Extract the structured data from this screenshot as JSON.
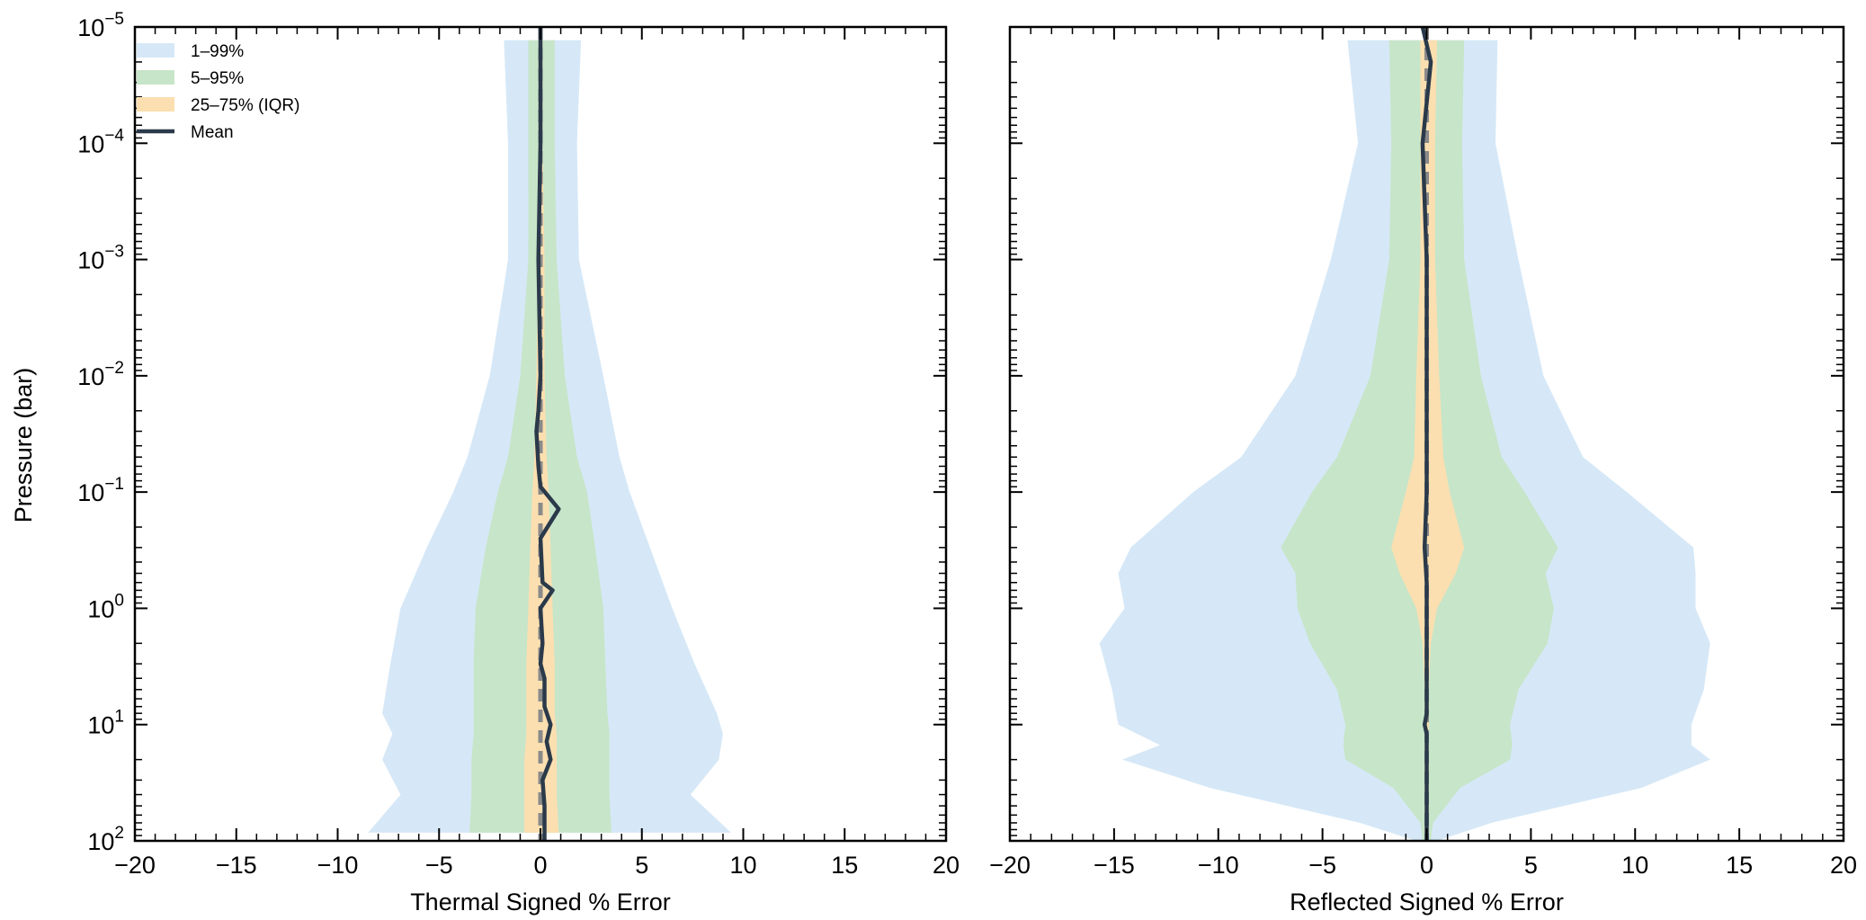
{
  "figure": {
    "y_axis_label": "Pressure (bar)",
    "legend": [
      {
        "label": "1–99%",
        "color": "#d6e8f7",
        "kind": "band"
      },
      {
        "label": "5–95%",
        "color": "#c7e5c9",
        "kind": "band"
      },
      {
        "label": "25–75% (IQR)",
        "color": "#fbdfb0",
        "kind": "band"
      },
      {
        "label": "Mean",
        "color": "#2b3a4a",
        "kind": "line"
      }
    ],
    "colors": {
      "band_1_99": "#d6e8f7",
      "band_5_95": "#c7e5c9",
      "band_iqr": "#fbdfb0",
      "mean_line": "#2b3a4a",
      "median_dashed": "#8a8a8a"
    }
  },
  "chart_data": [
    {
      "type": "area",
      "panel": "thermal",
      "xlabel": "Thermal Signed % Error",
      "ylabel": "Pressure (bar)",
      "xlim": [
        -20,
        20
      ],
      "ylim": [
        100,
        1e-05
      ],
      "yscale": "log",
      "x_ticks": [
        -20,
        -15,
        -10,
        -5,
        0,
        5,
        10,
        15,
        20
      ],
      "x_tick_labels": [
        "−20",
        "−15",
        "−10",
        "−5",
        "0",
        "5",
        "10",
        "15",
        "20"
      ],
      "y_ticks": [
        100,
        10,
        1,
        0.1,
        0.01,
        0.001,
        0.0001,
        1e-05
      ],
      "y_tick_labels": [
        {
          "base": "10",
          "exp": "2"
        },
        {
          "base": "10",
          "exp": "1"
        },
        {
          "base": "10",
          "exp": "0"
        },
        {
          "base": "10",
          "exp": "−1"
        },
        {
          "base": "10",
          "exp": "−2"
        },
        {
          "base": "10",
          "exp": "−3"
        },
        {
          "base": "10",
          "exp": "−4"
        },
        {
          "base": "10",
          "exp": "−5"
        }
      ],
      "pressure": [
        1.3e-05,
        0.0001,
        0.001,
        0.01,
        0.05,
        0.1,
        0.3,
        1,
        3,
        8,
        12,
        20,
        40,
        85
      ],
      "p1": [
        -1.8,
        -1.6,
        -1.6,
        -2.5,
        -3.6,
        -4.3,
        -5.6,
        -6.9,
        -7.4,
        -7.8,
        -7.3,
        -7.8,
        -6.9,
        -8.5
      ],
      "p99": [
        2.0,
        1.8,
        1.9,
        3.1,
        3.9,
        4.4,
        5.4,
        6.5,
        7.6,
        8.7,
        9.0,
        8.8,
        7.4,
        9.4
      ],
      "p5": [
        -0.6,
        -0.6,
        -0.6,
        -1.0,
        -1.6,
        -2.1,
        -2.7,
        -3.2,
        -3.3,
        -3.3,
        -3.3,
        -3.4,
        -3.4,
        -3.5
      ],
      "p95": [
        0.7,
        0.7,
        0.8,
        1.2,
        1.8,
        2.3,
        2.7,
        3.1,
        3.2,
        3.3,
        3.4,
        3.4,
        3.4,
        3.5
      ],
      "p25": [
        -0.1,
        -0.1,
        -0.1,
        -0.2,
        -0.3,
        -0.4,
        -0.5,
        -0.6,
        -0.7,
        -0.7,
        -0.7,
        -0.8,
        -0.8,
        -0.8
      ],
      "p75": [
        0.1,
        0.1,
        0.2,
        0.2,
        0.3,
        0.4,
        0.5,
        0.6,
        0.7,
        0.7,
        0.8,
        0.8,
        0.8,
        0.9
      ],
      "mean_pressure": [
        1e-05,
        0.0001,
        0.001,
        0.01,
        0.02,
        0.03,
        0.06,
        0.09,
        0.14,
        0.25,
        0.6,
        0.7,
        1.0,
        2.0,
        3.0,
        4.0,
        7.0,
        10,
        14,
        20,
        30,
        50,
        100
      ],
      "mean": [
        0.0,
        0.0,
        -0.1,
        0.0,
        -0.1,
        -0.2,
        -0.1,
        0.0,
        0.9,
        0.0,
        0.1,
        0.6,
        0.0,
        0.1,
        0.0,
        0.2,
        0.2,
        0.5,
        0.3,
        0.5,
        0.1,
        0.2,
        0.2
      ],
      "median": [
        0.0,
        0.0,
        0.0,
        0.0,
        0.0,
        0.0,
        0.0,
        0.0,
        0.0,
        0.0,
        0.0,
        0.0,
        0.0,
        0.0,
        0.0,
        0.0,
        0.0,
        0.0,
        0.0,
        0.0,
        0.0,
        0.0,
        0.0
      ]
    },
    {
      "type": "area",
      "panel": "reflected",
      "xlabel": "Reflected Signed % Error",
      "ylabel": "",
      "xlim": [
        -20,
        20
      ],
      "ylim": [
        100,
        1e-05
      ],
      "yscale": "log",
      "x_ticks": [
        -20,
        -15,
        -10,
        -5,
        0,
        5,
        10,
        15,
        20
      ],
      "x_tick_labels": [
        "−20",
        "−15",
        "−10",
        "−5",
        "0",
        "5",
        "10",
        "15",
        "20"
      ],
      "pressure": [
        1.3e-05,
        0.0001,
        0.001,
        0.01,
        0.05,
        0.1,
        0.3,
        0.5,
        1,
        2,
        5,
        10,
        15,
        20,
        35,
        70,
        100
      ],
      "p1": [
        -3.8,
        -3.3,
        -4.6,
        -6.3,
        -8.9,
        -11.2,
        -14.2,
        -14.8,
        -14.5,
        -15.7,
        -15.1,
        -14.8,
        -12.8,
        -14.6,
        -10.4,
        -3.2,
        -0.5
      ],
      "p99": [
        3.4,
        3.3,
        4.4,
        5.6,
        7.5,
        9.6,
        12.8,
        12.9,
        12.9,
        13.6,
        13.3,
        12.7,
        12.7,
        13.6,
        10.3,
        3.1,
        0.5
      ],
      "p5": [
        -1.8,
        -1.7,
        -1.8,
        -2.7,
        -4.3,
        -5.5,
        -7.0,
        -6.3,
        -6.2,
        -5.6,
        -4.3,
        -3.9,
        -4.0,
        -3.9,
        -1.6,
        -0.3,
        -0.2
      ],
      "p95": [
        1.8,
        1.7,
        1.8,
        2.6,
        3.6,
        4.7,
        6.3,
        5.7,
        6.1,
        5.8,
        4.4,
        4.0,
        4.1,
        4.0,
        1.6,
        0.3,
        0.2
      ],
      "p25": [
        -0.3,
        -0.3,
        -0.3,
        -0.5,
        -0.6,
        -1.0,
        -1.7,
        -1.3,
        -0.5,
        -0.2,
        -0.1,
        -0.1,
        -0.1,
        -0.1,
        -0.1,
        -0.1,
        -0.1
      ],
      "p75": [
        0.5,
        0.4,
        0.4,
        0.6,
        0.8,
        1.1,
        1.8,
        1.4,
        0.5,
        0.2,
        0.1,
        0.1,
        0.1,
        0.1,
        0.1,
        0.1,
        0.1
      ],
      "mean_pressure": [
        1e-05,
        2e-05,
        0.0001,
        0.001,
        0.01,
        0.1,
        0.3,
        0.6,
        1.0,
        3.0,
        8.0,
        10,
        12,
        20,
        50,
        100
      ],
      "mean": [
        -0.2,
        0.2,
        -0.2,
        0.0,
        0.0,
        0.0,
        -0.1,
        0.0,
        0.0,
        0.0,
        0.0,
        -0.1,
        0.0,
        0.0,
        0.0,
        0.0
      ],
      "median": [
        0.0,
        0.0,
        0.0,
        0.0,
        0.0,
        0.0,
        0.0,
        0.0,
        0.0,
        0.0,
        0.0,
        0.0,
        0.0,
        0.0,
        0.0,
        0.0
      ]
    }
  ]
}
